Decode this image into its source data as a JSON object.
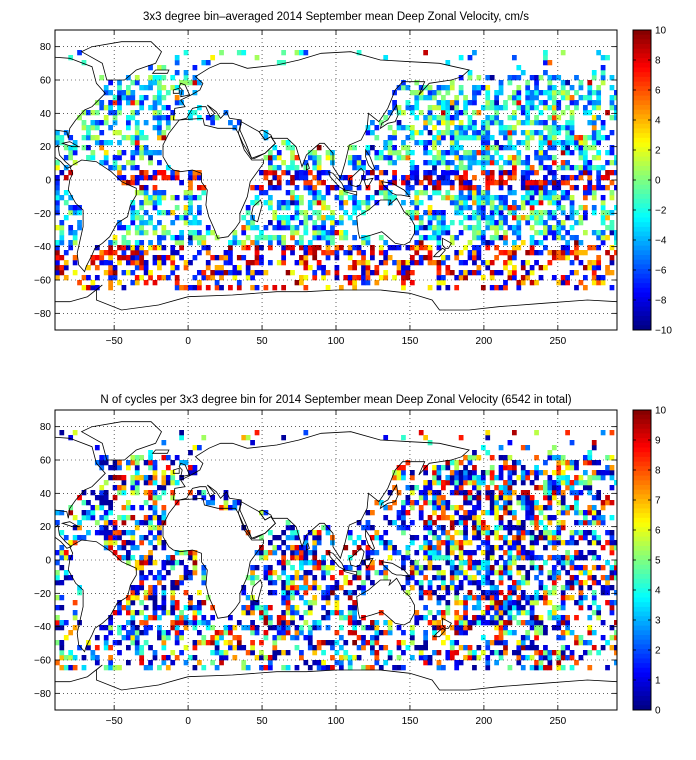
{
  "panels": [
    {
      "title": "3x3 degree bin–averaged 2014 September mean Deep Zonal Velocity, cm/s",
      "colorbar": {
        "min": -10,
        "max": 10,
        "ticks": [
          "10",
          "8",
          "6",
          "4",
          "2",
          "0",
          "−2",
          "−4",
          "−6",
          "−8",
          "−10"
        ]
      }
    },
    {
      "title": "N of cycles per 3x3 degree bin for 2014 September mean Deep Zonal Velocity (6542 in total)",
      "colorbar": {
        "min": 0,
        "max": 10,
        "ticks": [
          "10",
          "9",
          "8",
          "7",
          "6",
          "5",
          "4",
          "3",
          "2",
          "1",
          "0"
        ]
      }
    }
  ],
  "map_axes": {
    "x_ticks": [
      "−50",
      "0",
      "50",
      "100",
      "150",
      "200",
      "250"
    ],
    "y_ticks": [
      "80",
      "60",
      "40",
      "20",
      "0",
      "−20",
      "−40",
      "−60",
      "−80"
    ],
    "xlim": [
      -90,
      290
    ],
    "ylim": [
      -90,
      90
    ],
    "grid": "dotted"
  },
  "colormap": "jet",
  "chart_data": [
    {
      "type": "heatmap",
      "title": "3x3 degree bin–averaged 2014 September mean Deep Zonal Velocity, cm/s",
      "bin_size_deg": 3,
      "units": "cm/s",
      "xlim": [
        -90,
        290
      ],
      "ylim": [
        -90,
        90
      ],
      "value_range": [
        -10,
        10
      ],
      "sample_bins": [
        {
          "lon": 165,
          "lat": 0,
          "value": 10
        },
        {
          "lon": 171,
          "lat": 0,
          "value": 9
        },
        {
          "lon": 222,
          "lat": 0,
          "value": 10
        },
        {
          "lon": 228,
          "lat": 0,
          "value": 10
        },
        {
          "lon": 240,
          "lat": 0,
          "value": 8
        },
        {
          "lon": 130,
          "lat": 3,
          "value": -8
        },
        {
          "lon": 147,
          "lat": 3,
          "value": -9
        },
        {
          "lon": 183,
          "lat": 3,
          "value": -7
        },
        {
          "lon": 201,
          "lat": 3,
          "value": -8
        },
        {
          "lon": 30,
          "lat": -42,
          "value": 9
        },
        {
          "lon": 60,
          "lat": -45,
          "value": 8
        },
        {
          "lon": -40,
          "lat": -48,
          "value": 9
        },
        {
          "lon": -35,
          "lat": -42,
          "value": -8
        },
        {
          "lon": 220,
          "lat": 45,
          "value": 1
        },
        {
          "lon": 240,
          "lat": 35,
          "value": 0
        }
      ]
    },
    {
      "type": "heatmap",
      "title": "N of cycles per 3x3 degree bin for 2014 September mean Deep Zonal Velocity (6542 in total)",
      "bin_size_deg": 3,
      "total_cycles": 6542,
      "xlim": [
        -90,
        290
      ],
      "ylim": [
        -90,
        90
      ],
      "value_range": [
        0,
        10
      ],
      "sample_bins": [
        {
          "lon": 0,
          "lat": 42,
          "value": 10
        },
        {
          "lon": -45,
          "lat": 30,
          "value": 9
        },
        {
          "lon": 40,
          "lat": -45,
          "value": 1
        },
        {
          "lon": 180,
          "lat": -30,
          "value": 2
        },
        {
          "lon": 220,
          "lat": 20,
          "value": 3
        },
        {
          "lon": 140,
          "lat": 30,
          "value": 7
        }
      ]
    }
  ]
}
